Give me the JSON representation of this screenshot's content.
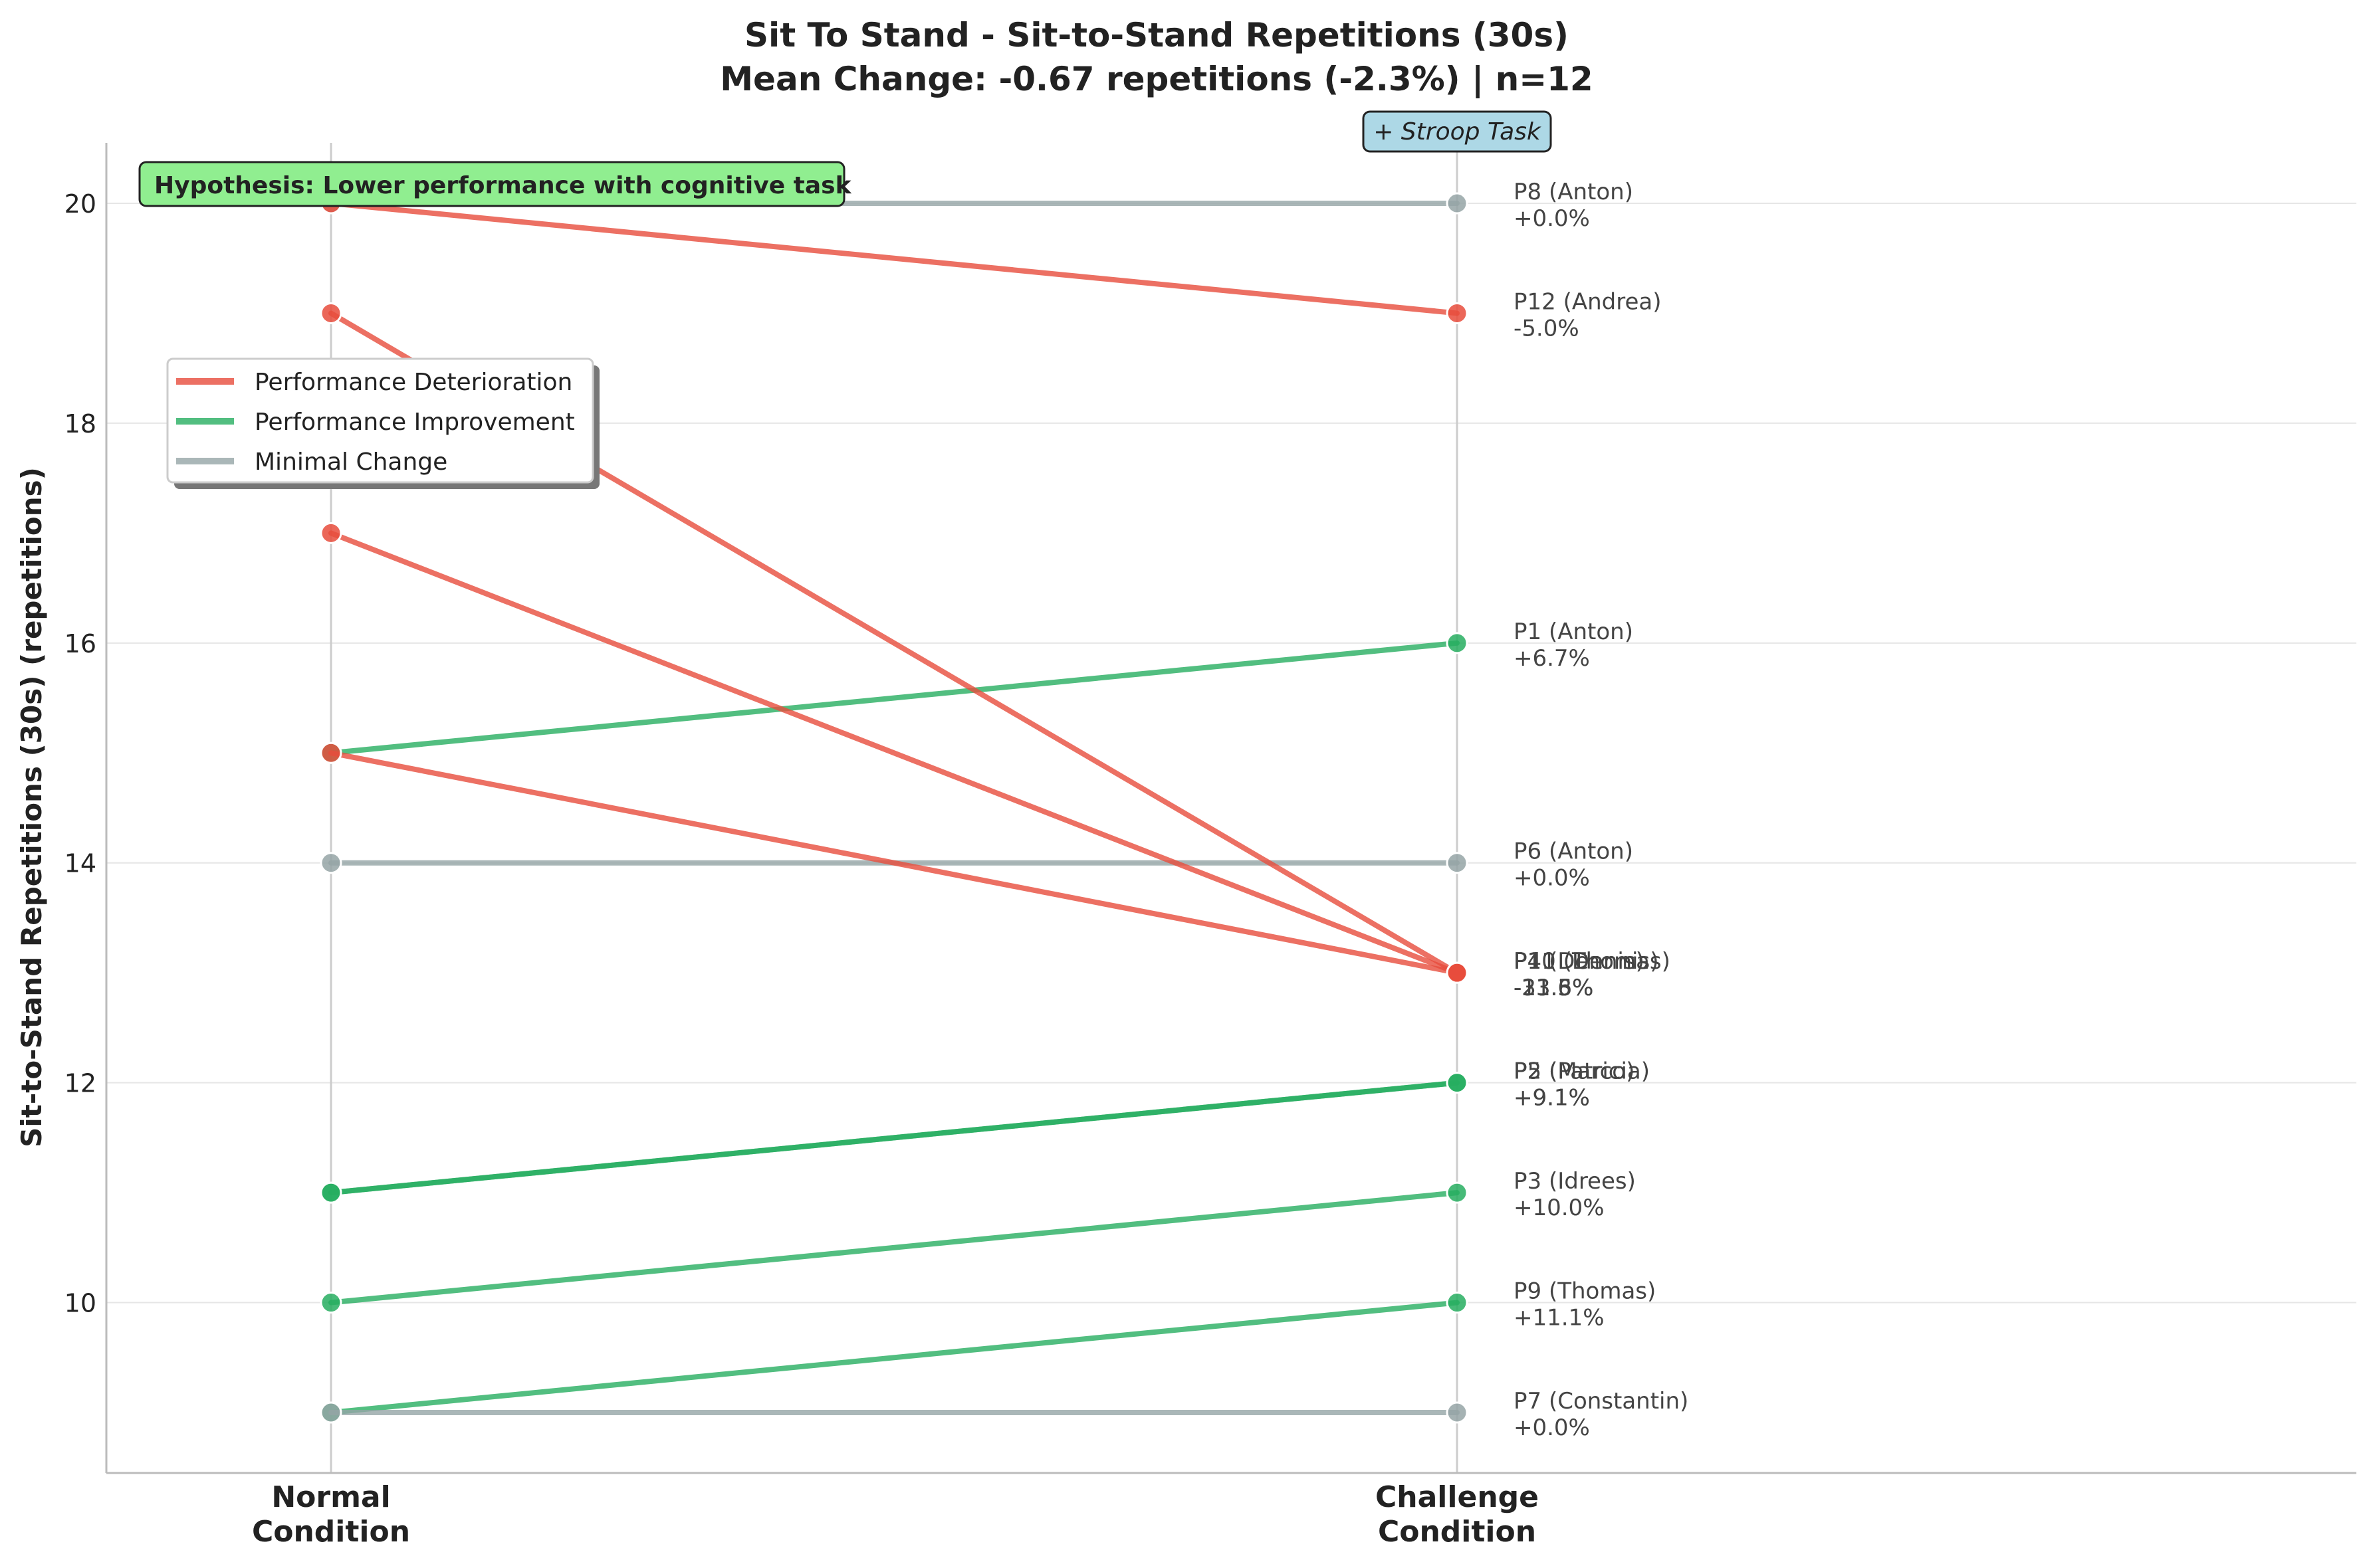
{
  "chart_data": {
    "type": "line",
    "title": "Sit To Stand - Sit-to-Stand Repetitions (30s)",
    "subtitle": "Mean Change: -0.67 repetitions (-2.3%) | n=12",
    "xlabel": "",
    "ylabel": "Sit-to-Stand Repetitions (30s) (repetitions)",
    "categories": [
      "Normal\nCondition",
      "Challenge\nCondition"
    ],
    "ylim": [
      8.45,
      20.55
    ],
    "yticks": [
      10,
      12,
      14,
      16,
      18,
      20
    ],
    "grid": true,
    "challenge_tag": "+ Stroop Task",
    "hypothesis": "Hypothesis: Lower performance with cognitive task",
    "legend": {
      "placement": "upper-left",
      "items": [
        {
          "label": "Performance Deterioration",
          "color": "#e74c3c"
        },
        {
          "label": "Performance Improvement",
          "color": "#27ae60"
        },
        {
          "label": "Minimal Change",
          "color": "#95a5a6"
        }
      ]
    },
    "colors": {
      "deterioration": "#e74c3c",
      "improvement": "#27ae60",
      "minimal": "#95a5a6"
    },
    "series": [
      {
        "name": "P8 (Anton)",
        "normal": 20,
        "challenge": 20,
        "change": "+0.0%",
        "category": "minimal"
      },
      {
        "name": "P12 (Andrea)",
        "normal": 20,
        "challenge": 19,
        "change": "-5.0%",
        "category": "deterioration"
      },
      {
        "name": "P1 (Anton)",
        "normal": 15,
        "challenge": 16,
        "change": "+6.7%",
        "category": "improvement"
      },
      {
        "name": "P6 (Anton)",
        "normal": 14,
        "challenge": 14,
        "change": "+0.0%",
        "category": "minimal"
      },
      {
        "name": "P4 (Dennis)",
        "normal": 19,
        "challenge": 13,
        "change": "-31.6%",
        "category": "deterioration"
      },
      {
        "name": "P10 (Thomas)",
        "normal": 17,
        "challenge": 13,
        "change": "-23.5%",
        "category": "deterioration"
      },
      {
        "name": "P11 (Dennis)",
        "normal": 15,
        "challenge": 13,
        "change": "-13.3%",
        "category": "deterioration"
      },
      {
        "name": "P2 (Patricia)",
        "normal": 11,
        "challenge": 12,
        "change": "+9.1%",
        "category": "improvement"
      },
      {
        "name": "P5 (Marco)",
        "normal": 11,
        "challenge": 12,
        "change": "+9.1%",
        "category": "improvement"
      },
      {
        "name": "P3 (Idrees)",
        "normal": 10,
        "challenge": 11,
        "change": "+10.0%",
        "category": "improvement"
      },
      {
        "name": "P9 (Thomas)",
        "normal": 9,
        "challenge": 10,
        "change": "+11.1%",
        "category": "improvement"
      },
      {
        "name": "P7 (Constantin)",
        "normal": 9,
        "challenge": 9,
        "change": "+0.0%",
        "category": "minimal"
      }
    ]
  }
}
